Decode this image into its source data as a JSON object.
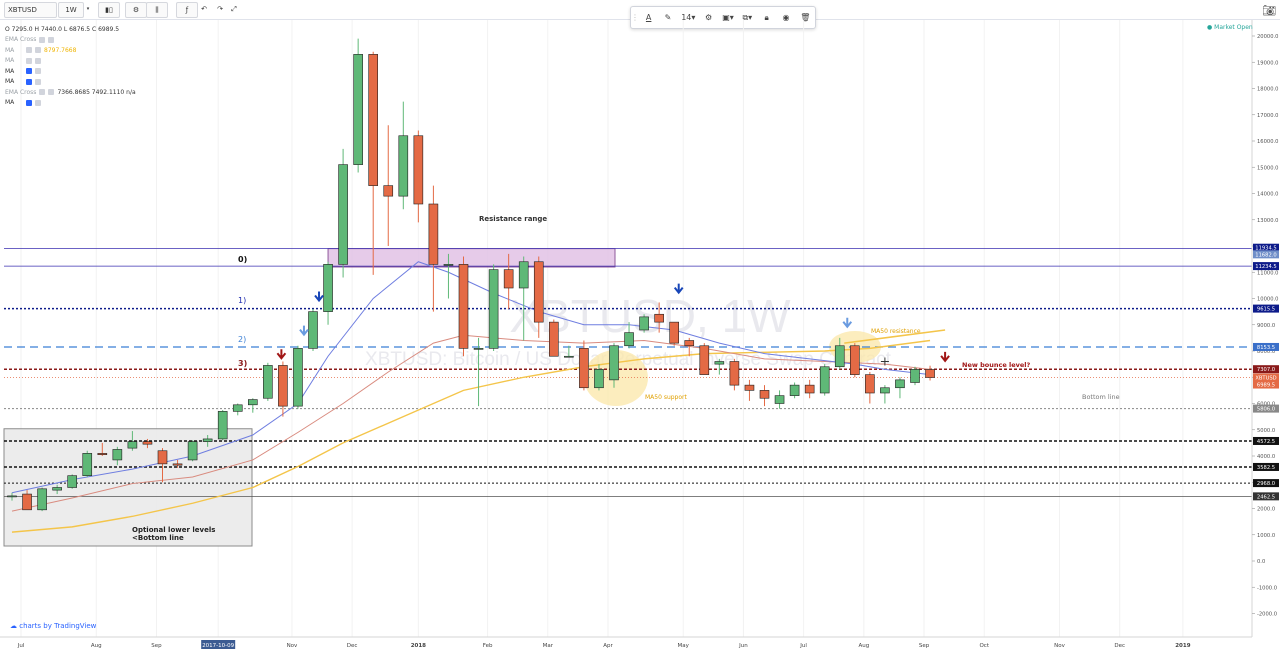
{
  "toolbar": {
    "symbol": "XBTUSD",
    "interval": "1W",
    "buttons": [
      {
        "name": "candle-style-icon",
        "glyph": "▮▯"
      },
      {
        "name": "settings-icon",
        "glyph": "⚙"
      },
      {
        "name": "compare-icon",
        "glyph": "⫼"
      },
      {
        "name": "indicators-icon",
        "glyph": "ƒ"
      },
      {
        "name": "undo-icon",
        "glyph": "↶"
      },
      {
        "name": "redo-icon",
        "glyph": "↷"
      },
      {
        "name": "fullscreen-icon",
        "glyph": "⤢"
      }
    ]
  },
  "drawing_toolbar": {
    "font_size": "14",
    "icons": [
      "text-color-icon",
      "line-color-icon",
      "font-size-select",
      "settings-icon",
      "template-icon",
      "clone-icon",
      "lock-icon",
      "visibility-icon",
      "trash-icon"
    ]
  },
  "legend": {
    "ohlc": "O 7295.0  H 7440.0  L 6876.5  C 6989.5",
    "rows": [
      {
        "label": "EMA Cross",
        "active": false,
        "values": ""
      },
      {
        "label": "MA",
        "active": false,
        "values": "8797.7668"
      },
      {
        "label": "MA",
        "active": false,
        "values": ""
      },
      {
        "label": "MA",
        "active": true,
        "values": ""
      },
      {
        "label": "MA",
        "active": true,
        "values": ""
      },
      {
        "label": "EMA Cross",
        "active": false,
        "values": "7366.8685  7492.1110  n/a"
      },
      {
        "label": "MA",
        "active": true,
        "values": ""
      }
    ]
  },
  "market_status": "Market Open",
  "watermark": {
    "symbol": "XBTUSD, 1W",
    "description": "XBTUSD: Bitcoin / US Dollar Perpetual Inverse Swap Contract"
  },
  "branding": "charts by TradingView",
  "colors": {
    "up": "#5fb877",
    "down": "#e46a45",
    "border": "#1f1f1f",
    "ma_blue": "#6f7ee0",
    "ma_red": "#d98b7f",
    "ma_yellow": "#f4c54a",
    "accent_blue": "#2962ff"
  },
  "annotations": {
    "resistance_range": "Resistance range",
    "level_0": "0)",
    "level_1": "1)",
    "level_2": "2)",
    "level_3": "3)",
    "ma50_support": "MA50 support",
    "ma50_resistance": "MA50 resistance",
    "new_bounce": "New bounce level?",
    "bottom_line": "Bottom line",
    "optional_lower_1": "Optional lower levels",
    "optional_lower_2": "<Bottom line"
  },
  "price_scale_badges": [
    {
      "price": 11934.5,
      "label": "11934.5",
      "color": "#0d1b8a"
    },
    {
      "price": 11682.0,
      "label": "11682.0",
      "color": "#6f8ec8"
    },
    {
      "price": 11234.5,
      "label": "11234.5",
      "color": "#0d1b8a"
    },
    {
      "price": 9615.5,
      "label": "9615.5",
      "color": "#0d1b8a"
    },
    {
      "price": 8153.5,
      "label": "8153.5",
      "color": "#3a6fc9"
    },
    {
      "price": 7307.0,
      "label": "7307.0",
      "color": "#8a1a1a"
    },
    {
      "price": 6989.5,
      "label": "XBTUSD",
      "color": "#e46a45"
    },
    {
      "price": 6989.5,
      "label": "6989.5",
      "color": "#e46a45",
      "offset": true
    },
    {
      "price": 5806.0,
      "label": "5806.0",
      "color": "#888888"
    },
    {
      "price": 4572.5,
      "label": "4572.5",
      "color": "#111111"
    },
    {
      "price": 3582.5,
      "label": "3582.5",
      "color": "#111111"
    },
    {
      "price": 2968.0,
      "label": "2968.0",
      "color": "#111111"
    },
    {
      "price": 2462.5,
      "label": "2462.5",
      "color": "#333333"
    }
  ],
  "chart_data": {
    "type": "candlestick",
    "symbol": "XBTUSD",
    "interval": "1W",
    "y_ticks": [
      20000,
      19000,
      18000,
      17000,
      16000,
      15000,
      14000,
      13000,
      12000,
      11000,
      10000,
      9000,
      8000,
      7000,
      6000,
      5000,
      4000,
      3000,
      2000,
      1000,
      0,
      -1000,
      -2000
    ],
    "y_tick_labels": [
      "20000.0",
      "19000.0",
      "18000.0",
      "17000.0",
      "16000.0",
      "15000.0",
      "14000.0",
      "13000.0",
      "12000.0",
      "11000.0",
      "10000.0",
      "9000.0",
      "8000.0",
      "7000.0",
      "6000.0",
      "5000.0",
      "4000.0",
      "3000.0",
      "2000.0",
      "1000.0",
      "0.0",
      "-1000.0",
      "-2000.0"
    ],
    "ylim": [
      -2500,
      20600
    ],
    "x_labels": [
      {
        "week": 0.6,
        "label": "Jul"
      },
      {
        "week": 5.6,
        "label": "Aug"
      },
      {
        "week": 9.6,
        "label": "Sep"
      },
      {
        "week": 13.7,
        "label": "2017-10-09",
        "highlight": true
      },
      {
        "week": 18.6,
        "label": "Nov"
      },
      {
        "week": 22.6,
        "label": "Dec"
      },
      {
        "week": 27.0,
        "label": "2018",
        "bold": true
      },
      {
        "week": 31.6,
        "label": "Feb"
      },
      {
        "week": 35.6,
        "label": "Mar"
      },
      {
        "week": 39.6,
        "label": "Apr"
      },
      {
        "week": 44.6,
        "label": "May"
      },
      {
        "week": 48.6,
        "label": "Jun"
      },
      {
        "week": 52.6,
        "label": "Jul"
      },
      {
        "week": 56.6,
        "label": "Aug"
      },
      {
        "week": 60.6,
        "label": "Sep"
      },
      {
        "week": 64.6,
        "label": "Oct"
      },
      {
        "week": 69.6,
        "label": "Nov"
      },
      {
        "week": 73.6,
        "label": "Dec"
      },
      {
        "week": 77.8,
        "label": "2019",
        "bold": true
      }
    ],
    "candles": [
      {
        "o": 2450,
        "h": 2600,
        "l": 2300,
        "c": 2480
      },
      {
        "o": 2550,
        "h": 2700,
        "l": 2100,
        "c": 1950
      },
      {
        "o": 1950,
        "h": 2800,
        "l": 1900,
        "c": 2750
      },
      {
        "o": 2700,
        "h": 2900,
        "l": 2550,
        "c": 2800
      },
      {
        "o": 2800,
        "h": 3300,
        "l": 2750,
        "c": 3250
      },
      {
        "o": 3250,
        "h": 4200,
        "l": 3200,
        "c": 4100
      },
      {
        "o": 4100,
        "h": 4500,
        "l": 4000,
        "c": 4050
      },
      {
        "o": 3850,
        "h": 4350,
        "l": 3650,
        "c": 4250
      },
      {
        "o": 4300,
        "h": 4950,
        "l": 4200,
        "c": 4550
      },
      {
        "o": 4550,
        "h": 4650,
        "l": 4300,
        "c": 4450
      },
      {
        "o": 4200,
        "h": 4300,
        "l": 3000,
        "c": 3700
      },
      {
        "o": 3700,
        "h": 3850,
        "l": 3550,
        "c": 3650
      },
      {
        "o": 3850,
        "h": 4600,
        "l": 3800,
        "c": 4550
      },
      {
        "o": 4550,
        "h": 4800,
        "l": 4350,
        "c": 4650
      },
      {
        "o": 4650,
        "h": 5750,
        "l": 4600,
        "c": 5700
      },
      {
        "o": 5700,
        "h": 6000,
        "l": 5550,
        "c": 5950
      },
      {
        "o": 5950,
        "h": 6200,
        "l": 5650,
        "c": 6150
      },
      {
        "o": 6200,
        "h": 7550,
        "l": 6100,
        "c": 7450
      },
      {
        "o": 7450,
        "h": 7600,
        "l": 5500,
        "c": 5900
      },
      {
        "o": 5900,
        "h": 8200,
        "l": 5800,
        "c": 8100
      },
      {
        "o": 8100,
        "h": 9600,
        "l": 8000,
        "c": 9500
      },
      {
        "o": 9500,
        "h": 11400,
        "l": 9000,
        "c": 11300
      },
      {
        "o": 11300,
        "h": 15700,
        "l": 10800,
        "c": 15100
      },
      {
        "o": 15100,
        "h": 19900,
        "l": 14800,
        "c": 19300
      },
      {
        "o": 19300,
        "h": 19400,
        "l": 10900,
        "c": 14300
      },
      {
        "o": 14300,
        "h": 16600,
        "l": 12000,
        "c": 13900
      },
      {
        "o": 13900,
        "h": 17500,
        "l": 13400,
        "c": 16200
      },
      {
        "o": 16200,
        "h": 16400,
        "l": 12900,
        "c": 13600
      },
      {
        "o": 13600,
        "h": 14300,
        "l": 9500,
        "c": 11300
      },
      {
        "o": 11300,
        "h": 11700,
        "l": 10000,
        "c": 11300
      },
      {
        "o": 11300,
        "h": 11600,
        "l": 7800,
        "c": 8100
      },
      {
        "o": 8100,
        "h": 8500,
        "l": 5900,
        "c": 8100
      },
      {
        "o": 8100,
        "h": 11300,
        "l": 8000,
        "c": 11100
      },
      {
        "o": 11100,
        "h": 11700,
        "l": 9600,
        "c": 10400
      },
      {
        "o": 10400,
        "h": 11600,
        "l": 8400,
        "c": 11400
      },
      {
        "o": 11400,
        "h": 11600,
        "l": 8500,
        "c": 9100
      },
      {
        "o": 9100,
        "h": 9200,
        "l": 7900,
        "c": 7800
      },
      {
        "o": 7800,
        "h": 8200,
        "l": 7800,
        "c": 7800
      },
      {
        "o": 8100,
        "h": 8400,
        "l": 6500,
        "c": 6600
      },
      {
        "o": 6600,
        "h": 7500,
        "l": 6500,
        "c": 7300
      },
      {
        "o": 6900,
        "h": 8300,
        "l": 6600,
        "c": 8200
      },
      {
        "o": 8200,
        "h": 9100,
        "l": 8100,
        "c": 8700
      },
      {
        "o": 8800,
        "h": 9400,
        "l": 8700,
        "c": 9300
      },
      {
        "o": 9400,
        "h": 9850,
        "l": 8700,
        "c": 9100
      },
      {
        "o": 9100,
        "h": 9100,
        "l": 8200,
        "c": 8300
      },
      {
        "o": 8400,
        "h": 8500,
        "l": 7800,
        "c": 8200
      },
      {
        "o": 8200,
        "h": 8300,
        "l": 7100,
        "c": 7100
      },
      {
        "o": 7500,
        "h": 7700,
        "l": 7100,
        "c": 7600
      },
      {
        "o": 7600,
        "h": 7700,
        "l": 6500,
        "c": 6700
      },
      {
        "o": 6700,
        "h": 6900,
        "l": 6100,
        "c": 6500
      },
      {
        "o": 6500,
        "h": 6700,
        "l": 5900,
        "c": 6200
      },
      {
        "o": 6000,
        "h": 6500,
        "l": 5800,
        "c": 6300
      },
      {
        "o": 6300,
        "h": 6800,
        "l": 6200,
        "c": 6700
      },
      {
        "o": 6700,
        "h": 6900,
        "l": 6200,
        "c": 6400
      },
      {
        "o": 6400,
        "h": 7500,
        "l": 6300,
        "c": 7400
      },
      {
        "o": 7400,
        "h": 8500,
        "l": 7300,
        "c": 8200
      },
      {
        "o": 8200,
        "h": 8300,
        "l": 7000,
        "c": 7100
      },
      {
        "o": 7100,
        "h": 7200,
        "l": 6000,
        "c": 6400
      },
      {
        "o": 6400,
        "h": 6700,
        "l": 6000,
        "c": 6600
      },
      {
        "o": 6600,
        "h": 7000,
        "l": 6200,
        "c": 6900
      },
      {
        "o": 6800,
        "h": 7400,
        "l": 6700,
        "c": 7300
      },
      {
        "o": 7295,
        "h": 7440,
        "l": 6876.5,
        "c": 6989.5
      }
    ]
  }
}
